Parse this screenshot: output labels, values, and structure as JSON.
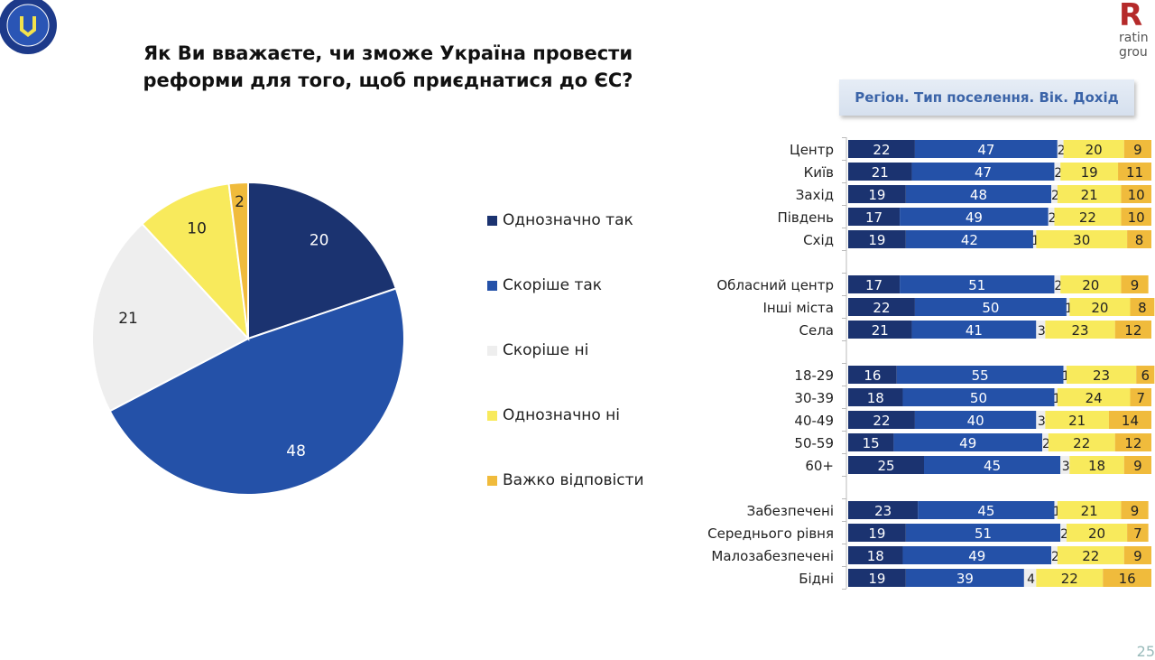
{
  "title": "Як Ви вважаєте, чи зможе Україна провести реформи для того, щоб приєднатися до ЄС?",
  "logos": {
    "left": "EUROPEAN UNION EUAM UKRAINE",
    "right_letter": "R",
    "right_text": [
      "ratin",
      "grou"
    ]
  },
  "breakdown_header": "Регіон. Тип поселення. Вік. Дохід",
  "page_number": "25",
  "colors": {
    "definitely_yes": "#1b3370",
    "rather_yes": "#2451a8",
    "hard_to_say": "#eeeeee",
    "rather_no": "#f8ea5c",
    "definitely_no": "#f0bb3c"
  },
  "chart_data": [
    {
      "type": "pie",
      "categories": [
        "Однозначно так",
        "Скоріше так",
        "Скоріше ні",
        "Однозначно ні",
        "Важко відповісти"
      ],
      "values": [
        20,
        48,
        21,
        10,
        2
      ],
      "legend": "right"
    },
    {
      "type": "bar",
      "stacked": true,
      "orientation": "horizontal",
      "categories": [
        "Центр",
        "Київ",
        "Захід",
        "Південь",
        "Схід",
        "Обласний центр",
        "Інші міста",
        "Села",
        "18-29",
        "30-39",
        "40-49",
        "50-59",
        "60+",
        "Забезпечені",
        "Середнього рівня",
        "Малозабезпечені",
        "Бідні"
      ],
      "groups": [
        5,
        3,
        5,
        4
      ],
      "series": [
        {
          "name": "Однозначно так",
          "values": [
            22,
            21,
            19,
            17,
            19,
            17,
            22,
            21,
            16,
            18,
            22,
            15,
            25,
            23,
            19,
            18,
            19
          ]
        },
        {
          "name": "Скоріше так",
          "values": [
            47,
            47,
            48,
            49,
            42,
            51,
            50,
            41,
            55,
            50,
            40,
            49,
            45,
            45,
            51,
            49,
            39
          ]
        },
        {
          "name": "Важко відповісти",
          "values": [
            2,
            2,
            2,
            2,
            1,
            2,
            1,
            3,
            1,
            1,
            3,
            2,
            3,
            1,
            2,
            2,
            4
          ]
        },
        {
          "name": "Скоріше ні",
          "values": [
            20,
            19,
            21,
            22,
            30,
            20,
            20,
            23,
            23,
            24,
            21,
            22,
            18,
            21,
            20,
            22,
            22
          ]
        },
        {
          "name": "Однозначно ні",
          "values": [
            9,
            11,
            10,
            10,
            8,
            9,
            8,
            12,
            6,
            7,
            14,
            12,
            9,
            9,
            7,
            9,
            16
          ]
        }
      ],
      "xlim": [
        0,
        100
      ]
    }
  ]
}
